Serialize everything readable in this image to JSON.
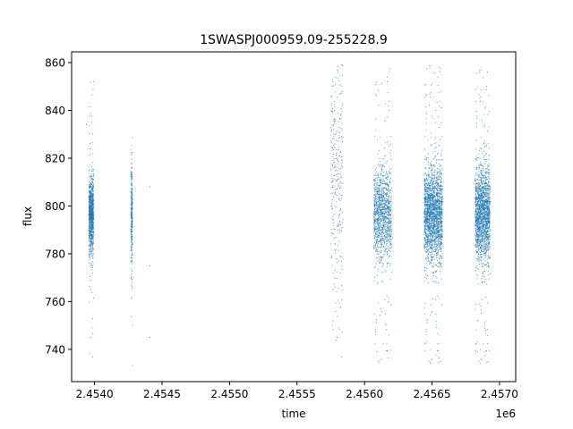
{
  "chart_data": {
    "type": "scatter",
    "title": "1SWASPJ000959.09-255228.9",
    "xlabel": "time",
    "ylabel": "flux",
    "x_offset_label": "1e6",
    "xlim": [
      2.45383,
      2.45712
    ],
    "ylim": [
      726.5,
      864.5
    ],
    "x_ticks": [
      2.454,
      2.4545,
      2.455,
      2.4555,
      2.456,
      2.4565,
      2.457
    ],
    "x_tick_labels": [
      "2.4540",
      "2.4545",
      "2.4550",
      "2.4555",
      "2.4560",
      "2.4565",
      "2.4570"
    ],
    "y_ticks": [
      740,
      760,
      780,
      800,
      820,
      840,
      860
    ],
    "y_tick_labels": [
      "740",
      "760",
      "780",
      "800",
      "820",
      "840",
      "860"
    ],
    "grid": false,
    "legend": "none",
    "marker_color": "#1f77b4",
    "series": [
      {
        "clusters": [
          {
            "x": 2.453975,
            "width": 3.5e-05,
            "center": 796,
            "spread": 8,
            "ymin": 734,
            "ymax": 857,
            "density": 3
          },
          {
            "x": 2.454275,
            "width": 1.2e-05,
            "center": 795,
            "spread": 11,
            "ymin": 733,
            "ymax": 831,
            "density": 1
          },
          {
            "x": 2.455795,
            "width": 9e-05,
            "center": 812,
            "spread": 28,
            "ymin": 735,
            "ymax": 859,
            "density": 1
          },
          {
            "x": 2.456135,
            "width": 0.00013,
            "center": 796,
            "spread": 10,
            "ymin": 733,
            "ymax": 859,
            "density": 4
          },
          {
            "x": 2.45651,
            "width": 0.000135,
            "center": 796,
            "spread": 10,
            "ymin": 733,
            "ymax": 859,
            "density": 7
          },
          {
            "x": 2.456875,
            "width": 0.00011,
            "center": 796,
            "spread": 10,
            "ymin": 733,
            "ymax": 857,
            "density": 6
          }
        ],
        "outliers": [
          {
            "x": 2.45394,
            "y": 834
          },
          {
            "x": 2.45441,
            "y": 808
          },
          {
            "x": 2.45441,
            "y": 775
          },
          {
            "x": 2.45441,
            "y": 745
          }
        ]
      }
    ]
  }
}
